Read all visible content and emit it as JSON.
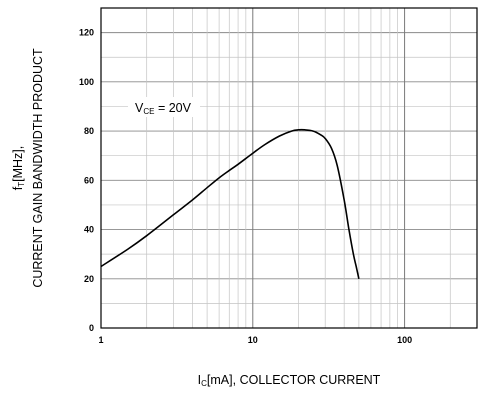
{
  "chart_data": {
    "type": "line",
    "x_scale": "log",
    "y_scale": "linear",
    "xlim": [
      1,
      300
    ],
    "ylim": [
      0,
      130
    ],
    "x_ticks": [
      1,
      10,
      100
    ],
    "x_tick_labels": [
      "1",
      "10",
      "100"
    ],
    "y_ticks": [
      0,
      20,
      40,
      60,
      80,
      100,
      120
    ],
    "y_tick_labels": [
      "0",
      "20",
      "40",
      "60",
      "80",
      "100",
      "120"
    ],
    "grid": true,
    "xlabel": {
      "main": "I",
      "sub": "C",
      "rest": "[mA], COLLECTOR CURRENT"
    },
    "ylabel": {
      "line1_main": "f",
      "line1_sub": "T",
      "line1_rest": "[MHz],",
      "line2": "CURRENT GAIN BANDWIDTH PRODUCT"
    },
    "annotation": {
      "main": "V",
      "sub": "CE",
      "rest": " = 20V"
    },
    "series": [
      {
        "x": [
          1,
          1.5,
          2,
          3,
          4,
          5,
          6,
          7,
          8,
          10,
          12,
          15,
          18,
          20,
          22,
          25,
          28,
          30,
          33,
          36,
          40,
          43,
          46,
          48,
          50
        ],
        "y": [
          25,
          32,
          37.5,
          46,
          52,
          57,
          61,
          64,
          66.5,
          71,
          74.5,
          78,
          80,
          80.5,
          80.5,
          80,
          78.5,
          77,
          73,
          66,
          52,
          40,
          30,
          25,
          20
        ],
        "color": "#000000"
      }
    ]
  }
}
